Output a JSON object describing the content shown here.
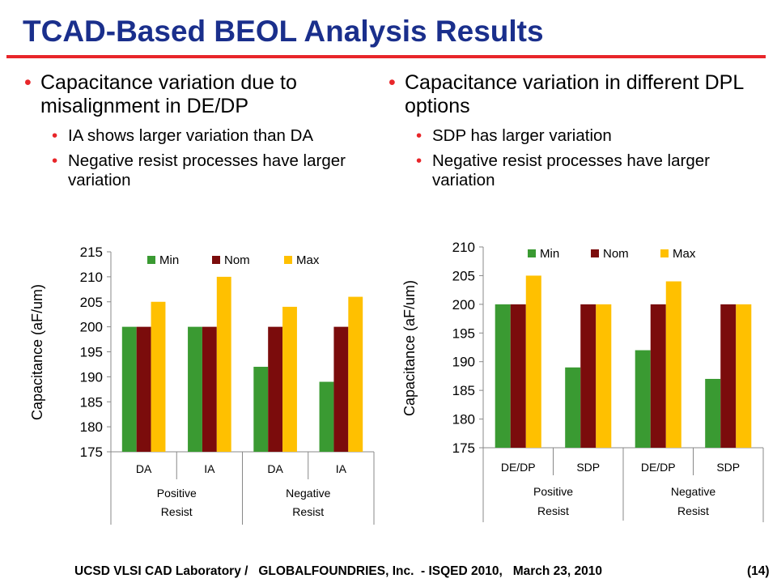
{
  "title": "TCAD-Based BEOL Analysis Results",
  "left_col": {
    "bullet": "Capacitance variation due to misalignment in DE/DP",
    "sub_bullets": [
      "IA shows larger variation than DA",
      "Negative resist processes have larger variation"
    ]
  },
  "right_col": {
    "bullet": "Capacitance variation in different DPL options",
    "sub_bullets": [
      "SDP has larger variation",
      "Negative resist processes have larger variation"
    ]
  },
  "footer": "UCSD VLSI CAD Laboratory /   GLOBALFOUNDRIES, Inc.  - ISQED 2010,   March 23, 2010",
  "page_number": "(14)",
  "colors": {
    "title": "#1a2f8c",
    "rule": "#e8262a",
    "min": "#3a9a32",
    "nom": "#7b0c0c",
    "max": "#ffc000"
  },
  "chart_data": [
    {
      "type": "bar",
      "ylabel": "Capacitance (aF/um)",
      "ylim": [
        175,
        215
      ],
      "yticks": [
        175,
        180,
        185,
        190,
        195,
        200,
        205,
        210,
        215
      ],
      "categories": [
        "DA",
        "IA",
        "DA",
        "IA"
      ],
      "groups": [
        {
          "label": [
            "Positive",
            "Resist"
          ],
          "span": 2
        },
        {
          "label": [
            "Negative",
            "Resist"
          ],
          "span": 2
        }
      ],
      "legend_position": "top",
      "series": [
        {
          "name": "Min",
          "color": "#3a9a32",
          "values": [
            200,
            200,
            192,
            189
          ]
        },
        {
          "name": "Nom",
          "color": "#7b0c0c",
          "values": [
            200,
            200,
            200,
            200
          ]
        },
        {
          "name": "Max",
          "color": "#ffc000",
          "values": [
            205,
            210,
            204,
            206
          ]
        }
      ]
    },
    {
      "type": "bar",
      "ylabel": "Capacitance (aF/um)",
      "ylim": [
        175,
        210
      ],
      "yticks": [
        175,
        180,
        185,
        190,
        195,
        200,
        205,
        210
      ],
      "categories": [
        "DE/DP",
        "SDP",
        "DE/DP",
        "SDP"
      ],
      "groups": [
        {
          "label": [
            "Positive",
            "Resist"
          ],
          "span": 2
        },
        {
          "label": [
            "Negative",
            "Resist"
          ],
          "span": 2
        }
      ],
      "legend_position": "top",
      "series": [
        {
          "name": "Min",
          "color": "#3a9a32",
          "values": [
            200,
            189,
            192,
            187
          ]
        },
        {
          "name": "Nom",
          "color": "#7b0c0c",
          "values": [
            200,
            200,
            200,
            200
          ]
        },
        {
          "name": "Max",
          "color": "#ffc000",
          "values": [
            205,
            200,
            204,
            200
          ]
        }
      ]
    }
  ]
}
